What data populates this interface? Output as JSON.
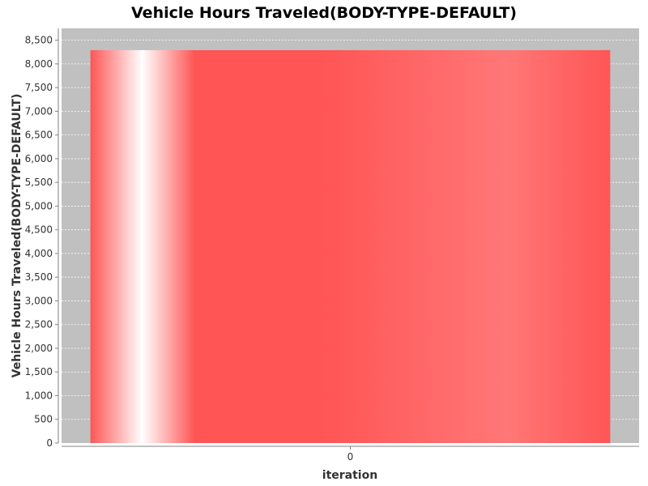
{
  "chart_data": {
    "type": "bar",
    "title": "Vehicle Hours Traveled(BODY-TYPE-DEFAULT)",
    "xlabel": "iteration",
    "ylabel": "Vehicle Hours Traveled(BODY-TYPE-DEFAULT)",
    "categories": [
      "0"
    ],
    "series": [
      {
        "values": [
          8290
        ]
      }
    ],
    "ylim": [
      0,
      8750
    ],
    "yticks": [
      0,
      500,
      1000,
      1500,
      2000,
      2500,
      3000,
      3500,
      4000,
      4500,
      5000,
      5500,
      6000,
      6500,
      7000,
      7500,
      8000,
      8500
    ],
    "ytick_labels": [
      "0",
      "500",
      "1,000",
      "1,500",
      "2,000",
      "2,500",
      "3,000",
      "3,500",
      "4,000",
      "4,500",
      "5,000",
      "5,500",
      "6,000",
      "6,500",
      "7,000",
      "7,500",
      "8,000",
      "8,500"
    ],
    "grid": true,
    "legend": "none"
  },
  "colors": {
    "plot_background": "#c0c0c0",
    "gridline": "#ffffff",
    "bar_base": "#ff5555",
    "bar_highlight": "#ffffff",
    "bar_light": "#ff7777"
  }
}
